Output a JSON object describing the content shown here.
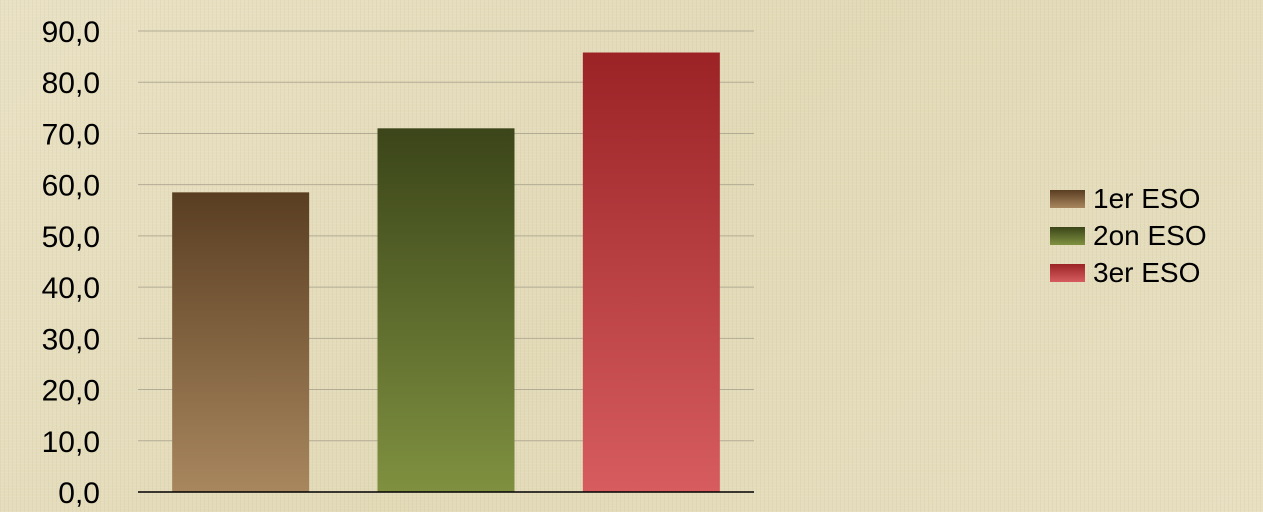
{
  "chart_data": {
    "type": "bar",
    "categories": [
      "1er ESO",
      "2on ESO",
      "3er ESO"
    ],
    "values": [
      58.5,
      71.0,
      85.8
    ],
    "ylim": [
      0,
      90
    ],
    "yticks": [
      "0,0",
      "10,0",
      "20,0",
      "30,0",
      "40,0",
      "50,0",
      "60,0",
      "70,0",
      "80,0",
      "90,0"
    ],
    "grid": true,
    "legend_position": "right",
    "series_colors": [
      {
        "top": "#5a3e22",
        "bottom": "#a8875e"
      },
      {
        "top": "#3b4519",
        "bottom": "#7f9140"
      },
      {
        "top": "#9b2326",
        "bottom": "#d65c5f"
      }
    ]
  },
  "legend": {
    "items": [
      {
        "label": "1er ESO"
      },
      {
        "label": "2on ESO"
      },
      {
        "label": "3er ESO"
      }
    ]
  }
}
